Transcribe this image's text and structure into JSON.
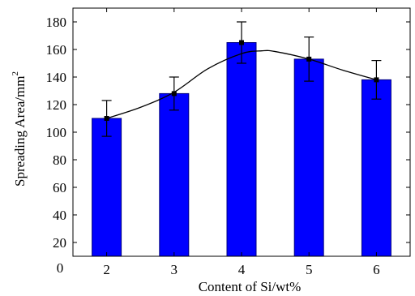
{
  "chart_data": {
    "type": "bar",
    "title": "",
    "xlabel": "Content of Si/wt%",
    "ylabel": "Spreading Area/mm",
    "ylabel_superscript": "2",
    "categories": [
      "2",
      "3",
      "4",
      "5",
      "6"
    ],
    "values": [
      110,
      128,
      165,
      153,
      138
    ],
    "error": [
      13,
      12,
      15,
      16,
      14
    ],
    "trend_points": {
      "x": [
        2,
        2.5,
        3,
        3.5,
        4,
        4.3,
        4.5,
        5,
        5.5,
        6
      ],
      "y": [
        110,
        118,
        129,
        146,
        157,
        159,
        158.5,
        153,
        145,
        138
      ]
    },
    "xlim": [
      1.5,
      6.5
    ],
    "ylim": [
      10,
      190
    ],
    "yticks": [
      20,
      40,
      60,
      80,
      100,
      120,
      140,
      160,
      180
    ],
    "xorigin_label": "0",
    "grid": false,
    "legend": "none",
    "colors": {
      "bar_fill": "#0000ff",
      "bar_stroke": "#000080",
      "line": "#000000",
      "marker": "#000000"
    }
  }
}
